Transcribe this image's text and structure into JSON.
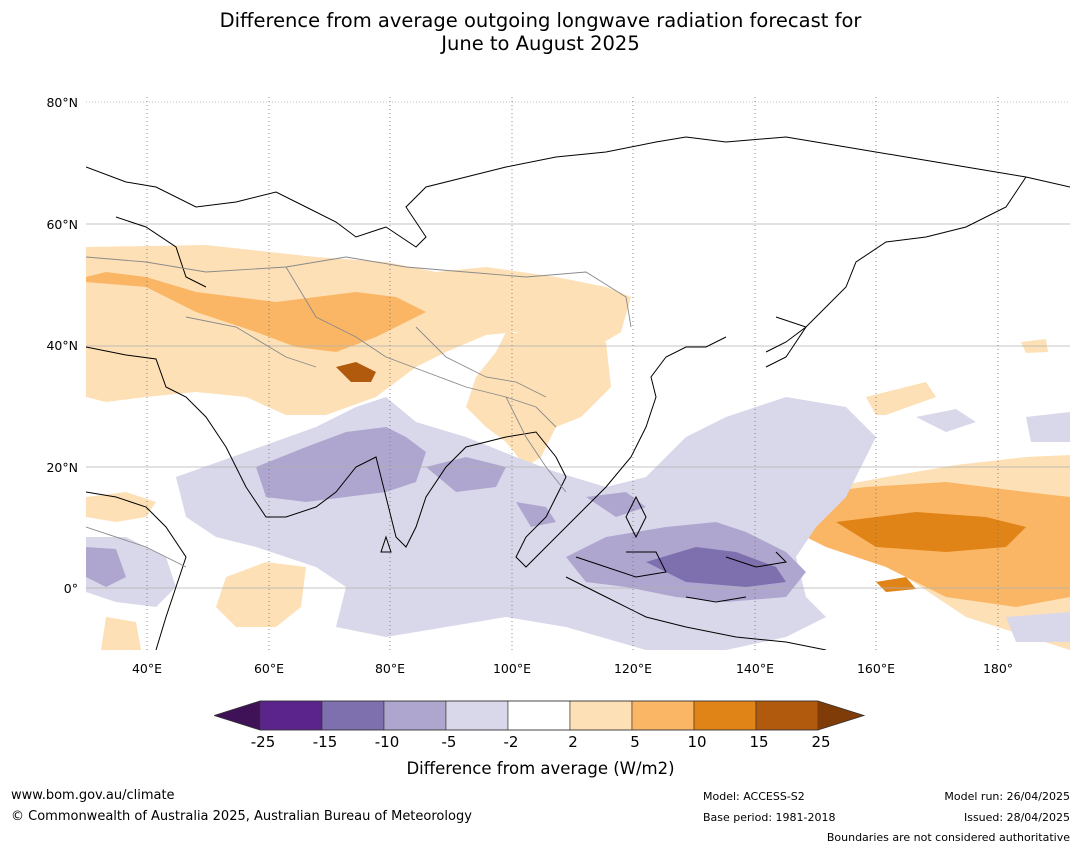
{
  "title_line1": "Difference from average outgoing longwave radiation forecast for",
  "title_line2": "June to August 2025",
  "lat_labels": [
    "80°N",
    "60°N",
    "40°N",
    "20°N",
    "0°"
  ],
  "lon_labels": [
    "40°E",
    "60°E",
    "80°E",
    "100°E",
    "120°E",
    "140°E",
    "160°E",
    "180°"
  ],
  "colorbar": {
    "ticks": [
      "-25",
      "-15",
      "-10",
      "-5",
      "-2",
      "2",
      "5",
      "10",
      "15",
      "25"
    ],
    "colors": [
      "#3f1258",
      "#5b248c",
      "#7e6fae",
      "#aea6cf",
      "#d9d8ea",
      "#ffffff",
      "#fde0b6",
      "#fab664",
      "#e08418",
      "#b15a0d",
      "#7f3b08"
    ],
    "label": "Difference from average (W/m2)"
  },
  "footer": {
    "website": "www.bom.gov.au/climate",
    "copyright": "© Commonwealth of Australia 2025, Australian Bureau of Meteorology",
    "model": "Model: ACCESS-S2",
    "base_period": "Base period: 1981-2018",
    "model_run": "Model run: 26/04/2025",
    "issued": "Issued: 28/04/2025",
    "disclaimer": "Boundaries are not considered authoritative"
  }
}
